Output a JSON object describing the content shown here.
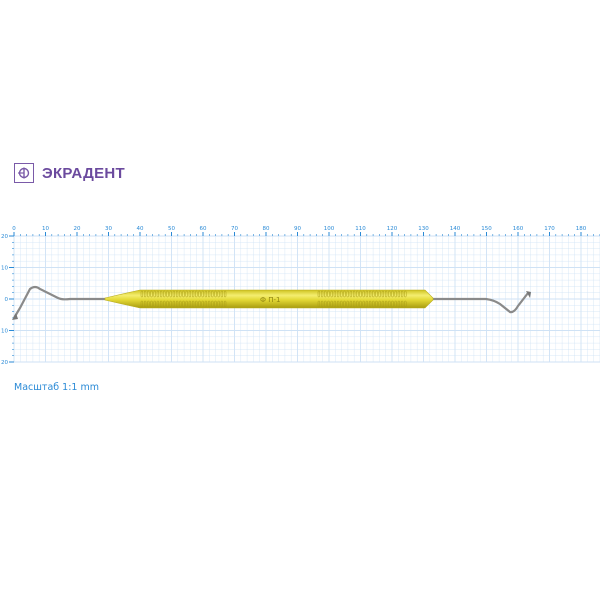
{
  "brand": {
    "name": "ЭКРАДЕНТ",
    "icon": "ekradent-logo",
    "color": "#6b4a9e"
  },
  "ruler": {
    "x_ticks": [
      "0",
      "10",
      "20",
      "30",
      "40",
      "50",
      "60",
      "70",
      "80",
      "90",
      "100",
      "110",
      "120",
      "130",
      "140",
      "150",
      "160",
      "170",
      "180"
    ],
    "y_ticks": [
      "20",
      "10",
      "0",
      "10",
      "20"
    ],
    "color": "#2a8ad6",
    "grid_color": "#cfe2f5"
  },
  "instrument": {
    "engraving": "Ф П-1",
    "handle_color": "#e8e03a"
  },
  "scale_label": "Масштаб 1:1 mm"
}
